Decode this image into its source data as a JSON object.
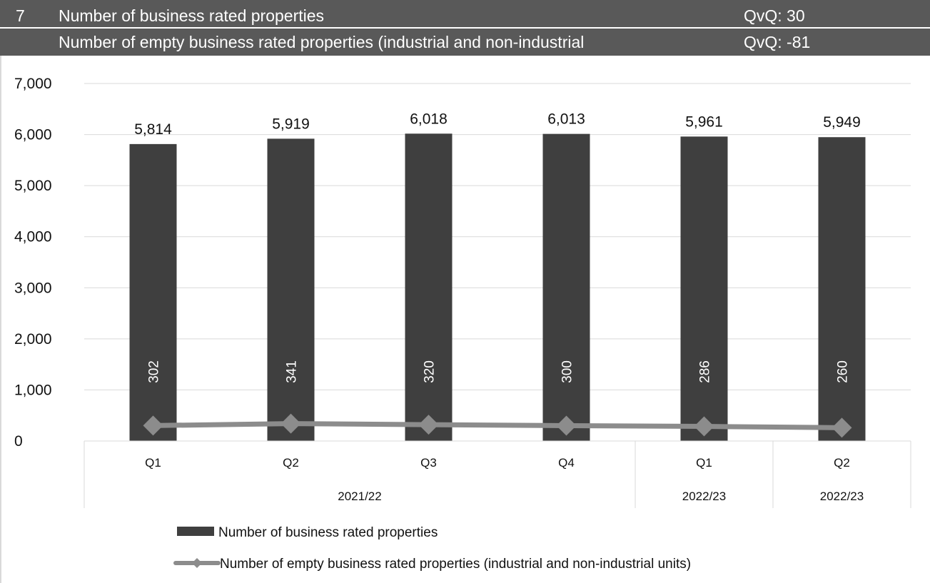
{
  "header": {
    "number": "7",
    "title1": "Number of business rated properties",
    "qvq1": "QvQ: 30",
    "title2": "Number of empty business rated properties (industrial and non-industrial",
    "qvq2": "QvQ: -81"
  },
  "colors": {
    "header_bg": "#595959",
    "bar": "#3f3f3f",
    "line": "#8c8c8c",
    "grid": "#d9d9d9"
  },
  "chart_data": {
    "type": "bar",
    "categories": [
      "Q1",
      "Q2",
      "Q3",
      "Q4",
      "Q1",
      "Q2"
    ],
    "groups": [
      {
        "label": "2021/22",
        "span": 4
      },
      {
        "label": "2022/23",
        "span": 1
      },
      {
        "label": "2022/23",
        "span": 1
      }
    ],
    "series": [
      {
        "name": "Number of business rated properties",
        "kind": "bar",
        "values": [
          5814,
          5919,
          6018,
          6013,
          5961,
          5949
        ],
        "labels": [
          "5,814",
          "5,919",
          "6,018",
          "6,013",
          "5,961",
          "5,949"
        ]
      },
      {
        "name": "Number of empty business rated properties (industrial and non-industrial units)",
        "kind": "line",
        "marker": "diamond",
        "values": [
          302,
          341,
          320,
          300,
          286,
          260
        ],
        "labels": [
          "302",
          "341",
          "320",
          "300",
          "286",
          "260"
        ]
      }
    ],
    "ylim": [
      0,
      7000
    ],
    "yticks": [
      0,
      1000,
      2000,
      3000,
      4000,
      5000,
      6000,
      7000
    ],
    "ytick_labels": [
      "0",
      "1,000",
      "2,000",
      "3,000",
      "4,000",
      "5,000",
      "6,000",
      "7,000"
    ],
    "grid": true,
    "legend_position": "bottom"
  }
}
